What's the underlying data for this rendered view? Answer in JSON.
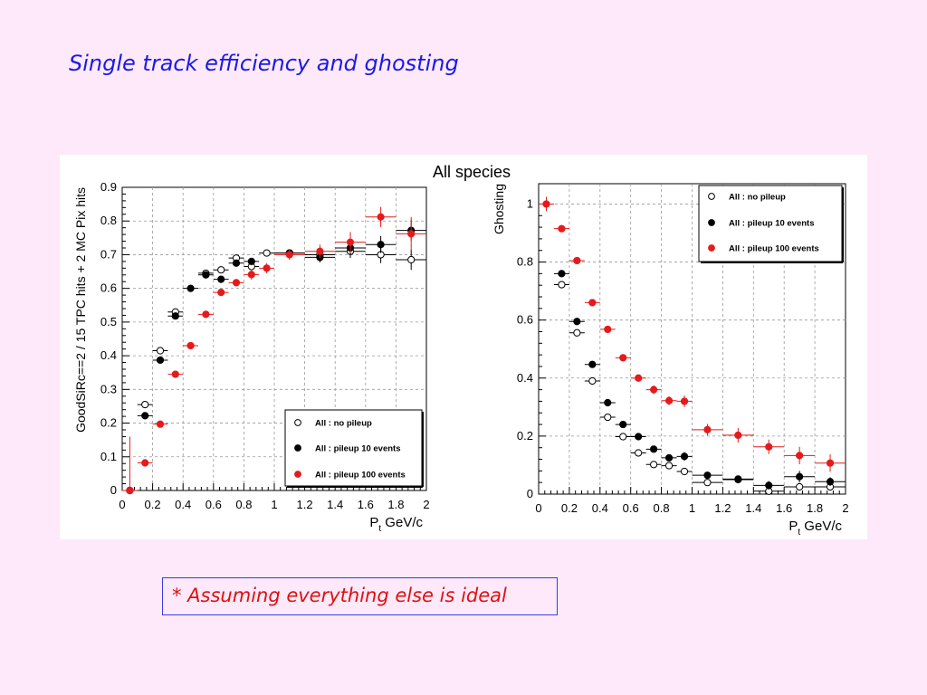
{
  "slide": {
    "title": "Single track efficiency and ghosting",
    "panel_label": "All species",
    "note": "* Assuming everything else is ideal"
  },
  "colors": {
    "no_pileup": "#000000",
    "pileup_10": "#000000",
    "pileup_100": "#e41a1c",
    "title": "#1a1ae6",
    "note": "#e01010"
  },
  "chart_data": [
    {
      "type": "scatter",
      "xlabel": "P_t GeV/c",
      "ylabel": "GoodSiRc==2 / 15 TPC hits + 2 MC Pix hits",
      "xlim": [
        0,
        2
      ],
      "ylim": [
        0,
        0.9
      ],
      "xticks": [
        "0",
        "0.2",
        "0.4",
        "0.6",
        "0.8",
        "1",
        "1.2",
        "1.4",
        "1.6",
        "1.8",
        "2"
      ],
      "yticks": [
        "0",
        "0.1",
        "0.2",
        "0.3",
        "0.4",
        "0.5",
        "0.6",
        "0.7",
        "0.8",
        "0.9"
      ],
      "grid": true,
      "legend_position": "bottom-right",
      "series": [
        {
          "name": "All : no pileup",
          "marker": "open-circle",
          "x": [
            0.05,
            0.15,
            0.25,
            0.35,
            0.55,
            0.65,
            0.75,
            0.85,
            0.95,
            1.1,
            1.3,
            1.5,
            1.7,
            1.9
          ],
          "y": [
            0.0,
            0.255,
            0.415,
            0.53,
            0.645,
            0.655,
            0.69,
            0.665,
            0.705,
            0.705,
            0.7,
            0.71,
            0.7,
            0.685
          ],
          "xerr": [
            0.05,
            0.05,
            0.05,
            0.05,
            0.05,
            0.05,
            0.05,
            0.05,
            0.05,
            0.1,
            0.1,
            0.1,
            0.1,
            0.1
          ],
          "yerr": [
            0,
            0,
            0,
            0,
            0,
            0,
            0,
            0,
            0,
            0.01,
            0.015,
            0.02,
            0.025,
            0.03
          ]
        },
        {
          "name": "All : pileup 10 events",
          "marker": "filled-circle",
          "x": [
            0.05,
            0.15,
            0.25,
            0.35,
            0.45,
            0.55,
            0.65,
            0.75,
            0.85,
            1.1,
            1.3,
            1.5,
            1.7,
            1.9
          ],
          "y": [
            0.0,
            0.222,
            0.387,
            0.518,
            0.6,
            0.64,
            0.627,
            0.675,
            0.68,
            0.705,
            0.692,
            0.72,
            0.73,
            0.772
          ],
          "xerr": [
            0.05,
            0.05,
            0.05,
            0.05,
            0.05,
            0.05,
            0.05,
            0.05,
            0.05,
            0.1,
            0.1,
            0.1,
            0.1,
            0.1
          ],
          "yerr": [
            0,
            0,
            0,
            0,
            0,
            0,
            0,
            0,
            0,
            0.01,
            0.015,
            0.02,
            0.025,
            0.03
          ]
        },
        {
          "name": "All : pileup 100 events",
          "marker": "filled-circle",
          "x": [
            0.05,
            0.15,
            0.25,
            0.35,
            0.45,
            0.55,
            0.65,
            0.75,
            0.85,
            0.95,
            1.1,
            1.3,
            1.5,
            1.7,
            1.9
          ],
          "y": [
            0.0,
            0.082,
            0.197,
            0.345,
            0.43,
            0.523,
            0.588,
            0.617,
            0.641,
            0.66,
            0.7,
            0.71,
            0.737,
            0.812,
            0.762
          ],
          "xerr": [
            0.05,
            0.05,
            0.05,
            0.05,
            0.05,
            0.05,
            0.05,
            0.05,
            0.05,
            0.05,
            0.1,
            0.1,
            0.1,
            0.1,
            0.1
          ],
          "yerr": [
            0.16,
            0,
            0,
            0,
            0,
            0,
            0,
            0,
            0.015,
            0.015,
            0.015,
            0.02,
            0.03,
            0.03,
            0.05
          ]
        }
      ]
    },
    {
      "type": "scatter",
      "xlabel": "P_t GeV/c",
      "ylabel": "Ghosting",
      "xlim": [
        0,
        2
      ],
      "ylim": [
        0,
        1.07
      ],
      "xticks": [
        "0",
        "0.2",
        "0.4",
        "0.6",
        "0.8",
        "1",
        "1.2",
        "1.4",
        "1.6",
        "1.8",
        "2"
      ],
      "yticks": [
        "0",
        "0.2",
        "0.4",
        "0.6",
        "0.8",
        "1"
      ],
      "grid": true,
      "legend_position": "top-right",
      "series": [
        {
          "name": "All : no pileup",
          "marker": "open-circle",
          "x": [
            0.15,
            0.25,
            0.35,
            0.45,
            0.55,
            0.65,
            0.75,
            0.85,
            0.95,
            1.1,
            1.3,
            1.5,
            1.7,
            1.9
          ],
          "y": [
            0.722,
            0.556,
            0.39,
            0.265,
            0.198,
            0.142,
            0.102,
            0.098,
            0.078,
            0.04,
            0.052,
            0.01,
            0.025,
            0.025
          ],
          "xerr": [
            0.05,
            0.05,
            0.05,
            0.05,
            0.05,
            0.05,
            0.05,
            0.05,
            0.05,
            0.1,
            0.1,
            0.1,
            0.1,
            0.1
          ],
          "yerr": [
            0,
            0,
            0,
            0,
            0,
            0,
            0,
            0,
            0,
            0.01,
            0.01,
            0.01,
            0.01,
            0.01
          ]
        },
        {
          "name": "All : pileup 10 events",
          "marker": "filled-circle",
          "x": [
            0.15,
            0.25,
            0.35,
            0.45,
            0.55,
            0.65,
            0.75,
            0.85,
            0.95,
            1.1,
            1.3,
            1.5,
            1.7,
            1.9
          ],
          "y": [
            0.76,
            0.595,
            0.447,
            0.315,
            0.24,
            0.198,
            0.155,
            0.125,
            0.13,
            0.065,
            0.05,
            0.03,
            0.06,
            0.043
          ],
          "xerr": [
            0.05,
            0.05,
            0.05,
            0.05,
            0.05,
            0.05,
            0.05,
            0.05,
            0.05,
            0.1,
            0.1,
            0.1,
            0.1,
            0.1
          ],
          "yerr": [
            0,
            0,
            0,
            0,
            0,
            0,
            0,
            0,
            0.015,
            0.01,
            0.012,
            0.015,
            0.02,
            0.015
          ]
        },
        {
          "name": "All : pileup 100 events",
          "marker": "filled-circle",
          "x": [
            0.05,
            0.15,
            0.25,
            0.35,
            0.45,
            0.55,
            0.65,
            0.75,
            0.85,
            0.95,
            1.1,
            1.3,
            1.5,
            1.7,
            1.9
          ],
          "y": [
            1.0,
            0.915,
            0.805,
            0.66,
            0.568,
            0.47,
            0.4,
            0.36,
            0.322,
            0.32,
            0.222,
            0.203,
            0.163,
            0.133,
            0.107
          ],
          "xerr": [
            0.05,
            0.05,
            0.05,
            0.05,
            0.05,
            0.05,
            0.05,
            0.05,
            0.05,
            0.05,
            0.1,
            0.1,
            0.1,
            0.1,
            0.1
          ],
          "yerr": [
            0.025,
            0.01,
            0.01,
            0.01,
            0.01,
            0.01,
            0.01,
            0.015,
            0.015,
            0.02,
            0.02,
            0.025,
            0.025,
            0.03,
            0.03
          ]
        }
      ]
    }
  ]
}
